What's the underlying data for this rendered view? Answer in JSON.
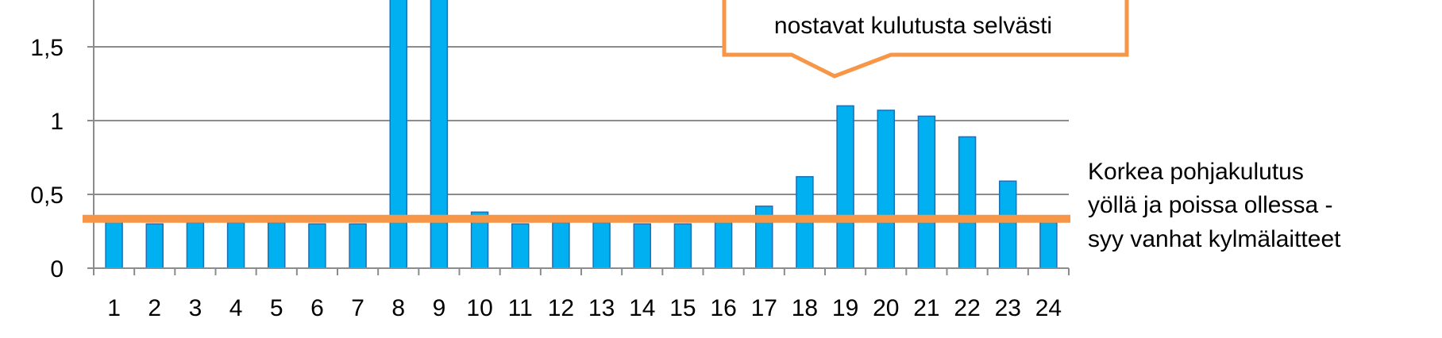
{
  "chart_data": {
    "type": "bar",
    "categories": [
      "1",
      "2",
      "3",
      "4",
      "5",
      "6",
      "7",
      "8",
      "9",
      "10",
      "11",
      "12",
      "13",
      "14",
      "15",
      "16",
      "17",
      "18",
      "19",
      "20",
      "21",
      "22",
      "23",
      "24"
    ],
    "values": [
      0.32,
      0.3,
      0.31,
      0.31,
      0.31,
      0.3,
      0.3,
      1.9,
      1.9,
      0.38,
      0.3,
      0.31,
      0.31,
      0.3,
      0.3,
      0.33,
      0.42,
      0.62,
      1.1,
      1.07,
      1.03,
      0.89,
      0.59,
      0.33
    ],
    "y_ticks": [
      "0",
      "0,5",
      "1",
      "1,5"
    ],
    "ylim": [
      0,
      1.85
    ],
    "grid": true,
    "bar_color": "#00B0F0",
    "baseline_line": {
      "value": 0.335,
      "color": "#F79646"
    },
    "annotations": {
      "callout": {
        "lines": [
          "nostavat kulutusta selvästi"
        ],
        "border_color": "#F79646"
      },
      "side_note": {
        "lines": [
          "Korkea pohjakulutus",
          "yöllä ja poissa ollessa -",
          "syy vanhat  kylmälaitteet"
        ]
      }
    }
  }
}
